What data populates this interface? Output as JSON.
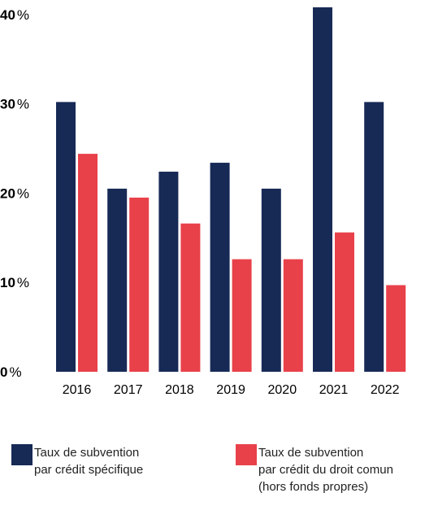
{
  "chart_data": {
    "type": "bar",
    "categories": [
      "2016",
      "2017",
      "2018",
      "2019",
      "2020",
      "2021",
      "2022"
    ],
    "series": [
      {
        "name": "Taux de subvention par crédit spécifique",
        "legend_lines": [
          "Taux de subvention",
          "par crédit spécifique"
        ],
        "color": "#172a56",
        "values": [
          30.2,
          20.5,
          22.4,
          23.4,
          20.5,
          40.8,
          30.2
        ]
      },
      {
        "name": "Taux de subvention par crédit du droit comun (hors fonds propres)",
        "legend_lines": [
          "Taux de subvention",
          "par crédit du droit comun",
          "(hors fonds propres)"
        ],
        "color": "#e8414a",
        "values": [
          24.4,
          19.5,
          16.6,
          12.6,
          12.6,
          15.6,
          9.7
        ]
      }
    ],
    "yticks": [
      {
        "num": "0",
        "unit": "%",
        "value": 0
      },
      {
        "num": "10",
        "unit": "%",
        "value": 10
      },
      {
        "num": "20",
        "unit": "%",
        "value": 20
      },
      {
        "num": "30",
        "unit": "%",
        "value": 30
      },
      {
        "num": "40",
        "unit": "%",
        "value": 40
      }
    ],
    "ylim": [
      0,
      40.8
    ],
    "grid": false,
    "legend_position": "bottom"
  }
}
